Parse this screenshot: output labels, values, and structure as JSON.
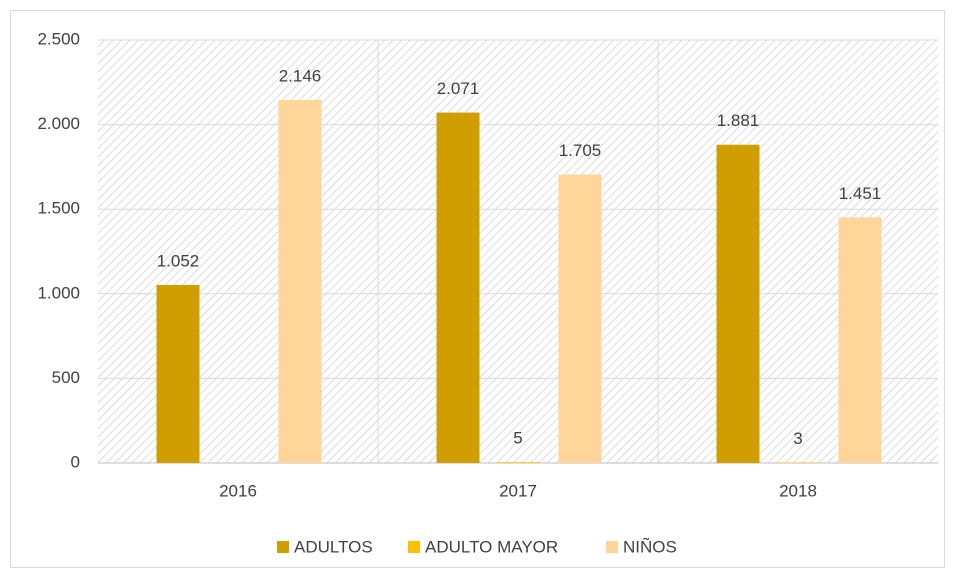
{
  "chart_data": {
    "type": "bar",
    "categories": [
      "2016",
      "2017",
      "2018"
    ],
    "series": [
      {
        "name": "ADULTOS",
        "color": "#d09e00",
        "values": [
          1052,
          2071,
          1881
        ],
        "value_labels": [
          "1.052",
          "2.071",
          "1.881"
        ]
      },
      {
        "name": "ADULTO MAYOR",
        "color": "#ffc000",
        "values": [
          null,
          5,
          3
        ],
        "value_labels": [
          null,
          "5",
          "3"
        ]
      },
      {
        "name": "NIÑOS",
        "color": "#ffd59a",
        "values": [
          2146,
          1705,
          1451
        ],
        "value_labels": [
          "2.146",
          "1.705",
          "1.451"
        ]
      }
    ],
    "ylim": [
      0,
      2500
    ],
    "yticks": [
      0,
      500,
      {
        "value": 1000,
        "label": "1.000"
      },
      {
        "value": 1500,
        "label": "1.500"
      },
      {
        "value": 2000,
        "label": "2.000"
      },
      {
        "value": 2500,
        "label": "2.500"
      }
    ],
    "grid": true,
    "legend": "bottom"
  }
}
